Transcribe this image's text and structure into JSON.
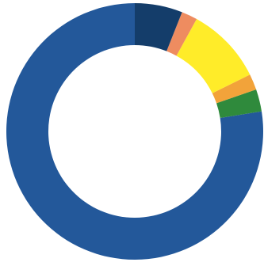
{
  "chart_data": {
    "type": "pie",
    "donut": true,
    "start": "top",
    "direction": "counterclockwise",
    "legend": "none",
    "title": "",
    "slices": [
      {
        "value": 77.5,
        "color": "#23589a"
      },
      {
        "value": 2.8,
        "color": "#2f8a3c"
      },
      {
        "value": 2.0,
        "color": "#f2a33a"
      },
      {
        "value": 9.7,
        "color": "#ffec29"
      },
      {
        "value": 2.0,
        "color": "#ee8c60"
      },
      {
        "value": 6.0,
        "color": "#143d6a"
      }
    ]
  }
}
